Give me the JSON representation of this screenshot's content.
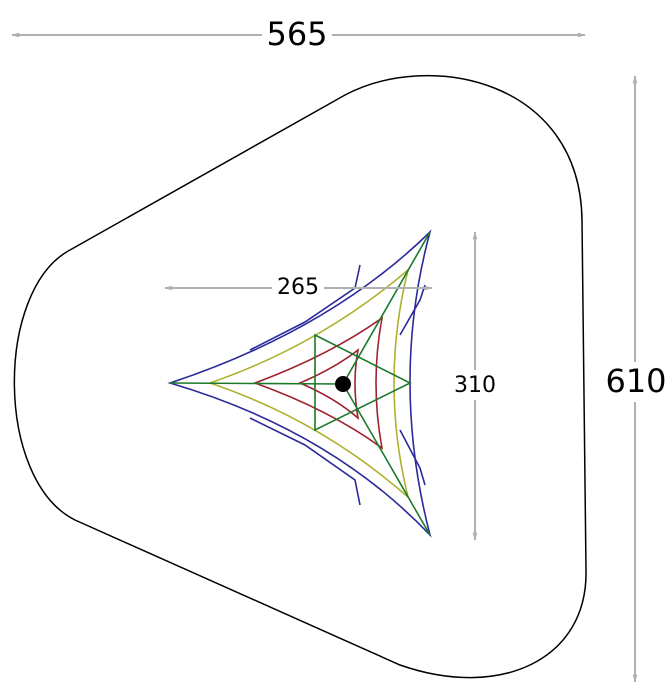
{
  "dimensions": {
    "width_outer": "565",
    "height_outer": "610",
    "width_inner": "265",
    "height_inner": "310"
  }
}
